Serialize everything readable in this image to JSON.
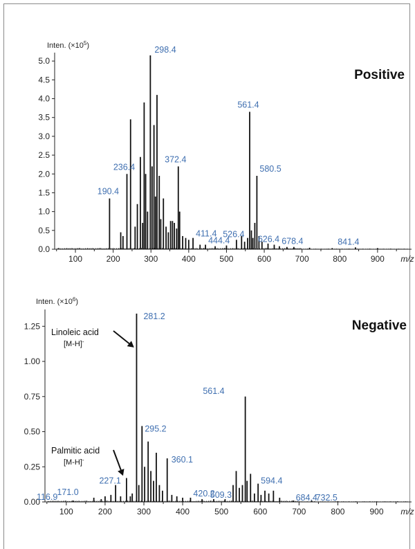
{
  "chart_data": [
    {
      "type": "line",
      "title": "Positive",
      "ylabel": "Inten. (×10",
      "ylabel_exp": "5",
      "ylabel_close": ")",
      "xlabel": "m/z",
      "xlim": [
        45,
        990
      ],
      "ylim": [
        0,
        5.15
      ],
      "xticks": [
        100,
        200,
        300,
        400,
        500,
        600,
        700,
        800,
        900
      ],
      "yticks": [
        0.0,
        0.5,
        1.0,
        1.5,
        2.0,
        2.5,
        3.0,
        3.5,
        4.0,
        4.5,
        5.0
      ],
      "ytick_labels": [
        "0.0",
        "0.5",
        "1.0",
        "1.5",
        "2.0",
        "2.5",
        "3.0",
        "3.5",
        "4.0",
        "4.5",
        "5.0"
      ],
      "peaks": [
        {
          "x": 190.4,
          "y": 1.35
        },
        {
          "x": 220,
          "y": 0.45
        },
        {
          "x": 226,
          "y": 0.35
        },
        {
          "x": 236.4,
          "y": 2.0
        },
        {
          "x": 246,
          "y": 3.45
        },
        {
          "x": 258,
          "y": 0.6
        },
        {
          "x": 264,
          "y": 1.2
        },
        {
          "x": 272,
          "y": 2.45
        },
        {
          "x": 278,
          "y": 0.7
        },
        {
          "x": 282,
          "y": 3.9
        },
        {
          "x": 286,
          "y": 2.0
        },
        {
          "x": 291,
          "y": 1.0
        },
        {
          "x": 298.4,
          "y": 5.15
        },
        {
          "x": 303,
          "y": 2.2
        },
        {
          "x": 308,
          "y": 3.3
        },
        {
          "x": 312,
          "y": 1.4
        },
        {
          "x": 316,
          "y": 4.1
        },
        {
          "x": 322,
          "y": 1.95
        },
        {
          "x": 326,
          "y": 0.8
        },
        {
          "x": 333,
          "y": 1.35
        },
        {
          "x": 340,
          "y": 0.6
        },
        {
          "x": 346,
          "y": 0.45
        },
        {
          "x": 352,
          "y": 0.75
        },
        {
          "x": 357,
          "y": 0.75
        },
        {
          "x": 362,
          "y": 0.7
        },
        {
          "x": 368,
          "y": 0.55
        },
        {
          "x": 372.4,
          "y": 2.2
        },
        {
          "x": 376,
          "y": 1.0
        },
        {
          "x": 384,
          "y": 0.35
        },
        {
          "x": 392,
          "y": 0.3
        },
        {
          "x": 400,
          "y": 0.25
        },
        {
          "x": 411.4,
          "y": 0.3
        },
        {
          "x": 430,
          "y": 0.12
        },
        {
          "x": 444.4,
          "y": 0.12
        },
        {
          "x": 470,
          "y": 0.08
        },
        {
          "x": 500,
          "y": 0.1
        },
        {
          "x": 526.4,
          "y": 0.25
        },
        {
          "x": 540,
          "y": 0.35
        },
        {
          "x": 548,
          "y": 0.2
        },
        {
          "x": 556,
          "y": 0.3
        },
        {
          "x": 561.4,
          "y": 3.65
        },
        {
          "x": 566,
          "y": 0.5
        },
        {
          "x": 570,
          "y": 0.3
        },
        {
          "x": 575,
          "y": 0.7
        },
        {
          "x": 580.5,
          "y": 1.95
        },
        {
          "x": 586,
          "y": 0.35
        },
        {
          "x": 594,
          "y": 0.2
        },
        {
          "x": 610,
          "y": 0.15
        },
        {
          "x": 626.4,
          "y": 0.12
        },
        {
          "x": 640,
          "y": 0.08
        },
        {
          "x": 660,
          "y": 0.06
        },
        {
          "x": 678.4,
          "y": 0.06
        },
        {
          "x": 720,
          "y": 0.04
        },
        {
          "x": 780,
          "y": 0.03
        },
        {
          "x": 841.4,
          "y": 0.05
        },
        {
          "x": 900,
          "y": 0.03
        }
      ],
      "labels": [
        {
          "text": "190.4",
          "x": 190.4,
          "y": 1.35
        },
        {
          "text": "236.4",
          "x": 236.4,
          "y": 2.0
        },
        {
          "text": "298.4",
          "x": 298.4,
          "y": 5.15
        },
        {
          "text": "372.4",
          "x": 372.4,
          "y": 2.2
        },
        {
          "text": "411.4",
          "x": 411.4,
          "y": 0.3
        },
        {
          "text": "444.4",
          "x": 444.4,
          "y": 0.12
        },
        {
          "text": "526.4",
          "x": 526.4,
          "y": 0.25
        },
        {
          "text": "561.4",
          "x": 561.4,
          "y": 3.65
        },
        {
          "text": "580.5",
          "x": 580.5,
          "y": 1.95
        },
        {
          "text": "626.4",
          "x": 626.4,
          "y": 0.12
        },
        {
          "text": "678.4",
          "x": 678.4,
          "y": 0.06
        },
        {
          "text": "841.4",
          "x": 841.4,
          "y": 0.05
        }
      ],
      "annotations": []
    },
    {
      "type": "line",
      "title": "Negative",
      "ylabel": "Inten. (×10",
      "ylabel_exp": "6",
      "ylabel_close": ")",
      "xlabel": "m/z",
      "xlim": [
        45,
        990
      ],
      "ylim": [
        0,
        1.35
      ],
      "xticks": [
        100,
        200,
        300,
        400,
        500,
        600,
        700,
        800,
        900
      ],
      "yticks": [
        0.0,
        0.25,
        0.5,
        0.75,
        1.0,
        1.25
      ],
      "ytick_labels": [
        "0.00",
        "0.25",
        "0.50",
        "0.75",
        "1.00",
        "1.25"
      ],
      "peaks": [
        {
          "x": 116.9,
          "y": 0.01
        },
        {
          "x": 171.0,
          "y": 0.03
        },
        {
          "x": 190,
          "y": 0.02
        },
        {
          "x": 200,
          "y": 0.04
        },
        {
          "x": 215,
          "y": 0.05
        },
        {
          "x": 227.1,
          "y": 0.12
        },
        {
          "x": 240,
          "y": 0.04
        },
        {
          "x": 255.2,
          "y": 0.17
        },
        {
          "x": 265,
          "y": 0.04
        },
        {
          "x": 270,
          "y": 0.06
        },
        {
          "x": 281.2,
          "y": 1.34
        },
        {
          "x": 287,
          "y": 0.12
        },
        {
          "x": 295.2,
          "y": 0.54
        },
        {
          "x": 302,
          "y": 0.25
        },
        {
          "x": 311,
          "y": 0.43
        },
        {
          "x": 318,
          "y": 0.22
        },
        {
          "x": 325,
          "y": 0.15
        },
        {
          "x": 332,
          "y": 0.35
        },
        {
          "x": 340,
          "y": 0.12
        },
        {
          "x": 348,
          "y": 0.08
        },
        {
          "x": 360.1,
          "y": 0.31
        },
        {
          "x": 372,
          "y": 0.05
        },
        {
          "x": 385,
          "y": 0.04
        },
        {
          "x": 400,
          "y": 0.03
        },
        {
          "x": 420.2,
          "y": 0.03
        },
        {
          "x": 450,
          "y": 0.02
        },
        {
          "x": 480,
          "y": 0.02
        },
        {
          "x": 509.3,
          "y": 0.02
        },
        {
          "x": 530,
          "y": 0.12
        },
        {
          "x": 538,
          "y": 0.22
        },
        {
          "x": 546,
          "y": 0.1
        },
        {
          "x": 554,
          "y": 0.12
        },
        {
          "x": 561.4,
          "y": 0.75
        },
        {
          "x": 566,
          "y": 0.15
        },
        {
          "x": 575,
          "y": 0.2
        },
        {
          "x": 585,
          "y": 0.06
        },
        {
          "x": 594.4,
          "y": 0.13
        },
        {
          "x": 602,
          "y": 0.05
        },
        {
          "x": 612,
          "y": 0.08
        },
        {
          "x": 622,
          "y": 0.06
        },
        {
          "x": 634,
          "y": 0.08
        },
        {
          "x": 650,
          "y": 0.03
        },
        {
          "x": 684.4,
          "y": 0.01
        },
        {
          "x": 732.5,
          "y": 0.01
        },
        {
          "x": 800,
          "y": 0.005
        }
      ],
      "labels": [
        {
          "text": "116.9",
          "x": 116.9,
          "y": 0.01
        },
        {
          "text": "171.0",
          "x": 171.0,
          "y": 0.03
        },
        {
          "text": "227.1",
          "x": 227.1,
          "y": 0.12
        },
        {
          "text": "281.2",
          "x": 281.2,
          "y": 1.34
        },
        {
          "text": "295.2",
          "x": 295.2,
          "y": 0.54
        },
        {
          "text": "360.1",
          "x": 360.1,
          "y": 0.31
        },
        {
          "text": "420.2",
          "x": 420.2,
          "y": 0.03
        },
        {
          "text": "509.3",
          "x": 509.3,
          "y": 0.02
        },
        {
          "text": "561.4",
          "x": 561.4,
          "y": 0.75
        },
        {
          "text": "594.4",
          "x": 594.4,
          "y": 0.13
        },
        {
          "text": "684.4",
          "x": 684.4,
          "y": 0.01
        },
        {
          "text": "732.5",
          "x": 732.5,
          "y": 0.01
        }
      ],
      "annotations": [
        {
          "name": "Linoleic acid",
          "ion": "[M-H]",
          "charge": "-",
          "target_x": 281.2,
          "target_y": 1.34
        },
        {
          "name": "Palmitic acid",
          "ion": "[M-H]",
          "charge": "-",
          "target_x": 255.2,
          "target_y": 0.17
        }
      ]
    }
  ],
  "colors": {
    "peak_label": "#3f6fb0",
    "trace": "#111111",
    "frame": "#8a8a8a"
  }
}
